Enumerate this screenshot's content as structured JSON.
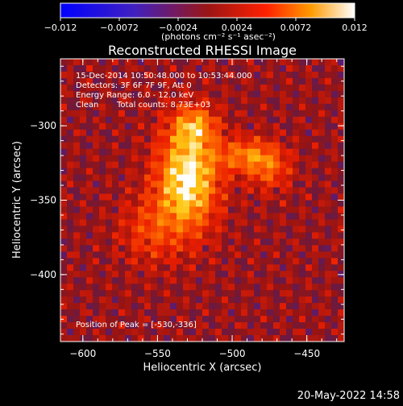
{
  "colorbar": {
    "ticks": [
      "-0.012",
      "-0.0072",
      "-0.0024",
      "0.0024",
      "0.0072",
      "0.012"
    ],
    "tick_values": [
      -0.012,
      -0.0072,
      -0.0024,
      0.0024,
      0.0072,
      0.012
    ],
    "units_label": "(photons cm⁻² s⁻¹ asec⁻²)",
    "range": [
      -0.012,
      0.012
    ],
    "colormap": "blue-purple-red-orange-yellow-white"
  },
  "chart_data": {
    "type": "heatmap",
    "title": "Reconstructed RHESSI Image",
    "xlabel": "Heliocentric X (arcsec)",
    "ylabel": "Heliocentric Y (arcsec)",
    "xlim": [
      -615,
      -425
    ],
    "ylim": [
      -445,
      -255
    ],
    "x_ticks": [
      -600,
      -550,
      -500,
      -450
    ],
    "x_tick_labels": [
      "−600",
      "−550",
      "−500",
      "−450"
    ],
    "y_ticks": [
      -300,
      -350,
      -400
    ],
    "y_tick_labels": [
      "−300",
      "−350",
      "−400"
    ],
    "peak_position": [
      -530,
      -336
    ],
    "annotations": [
      "15-Dec-2014 10:50:48.000 to 10:53:44.000",
      "Detectors: 3F 6F 7F 9F, Att 0",
      "Energy Range: 6.0 - 12.0 keV",
      "Clean",
      "Total counts: 8.73E+03",
      "Position of Peak = [-530,-336]"
    ],
    "sources": [
      {
        "x": -530,
        "y": -336,
        "peak": 0.012,
        "sx": 14,
        "sy": 24
      },
      {
        "x": -525,
        "y": -300,
        "peak": 0.0065,
        "sx": 10,
        "sy": 9
      },
      {
        "x": -490,
        "y": -320,
        "peak": 0.0065,
        "sx": 14,
        "sy": 8
      },
      {
        "x": -475,
        "y": -330,
        "peak": 0.0045,
        "sx": 10,
        "sy": 10
      },
      {
        "x": -555,
        "y": -370,
        "peak": 0.004,
        "sx": 14,
        "sy": 16
      }
    ]
  },
  "footer": {
    "date": "20-May-2022 14:58"
  }
}
